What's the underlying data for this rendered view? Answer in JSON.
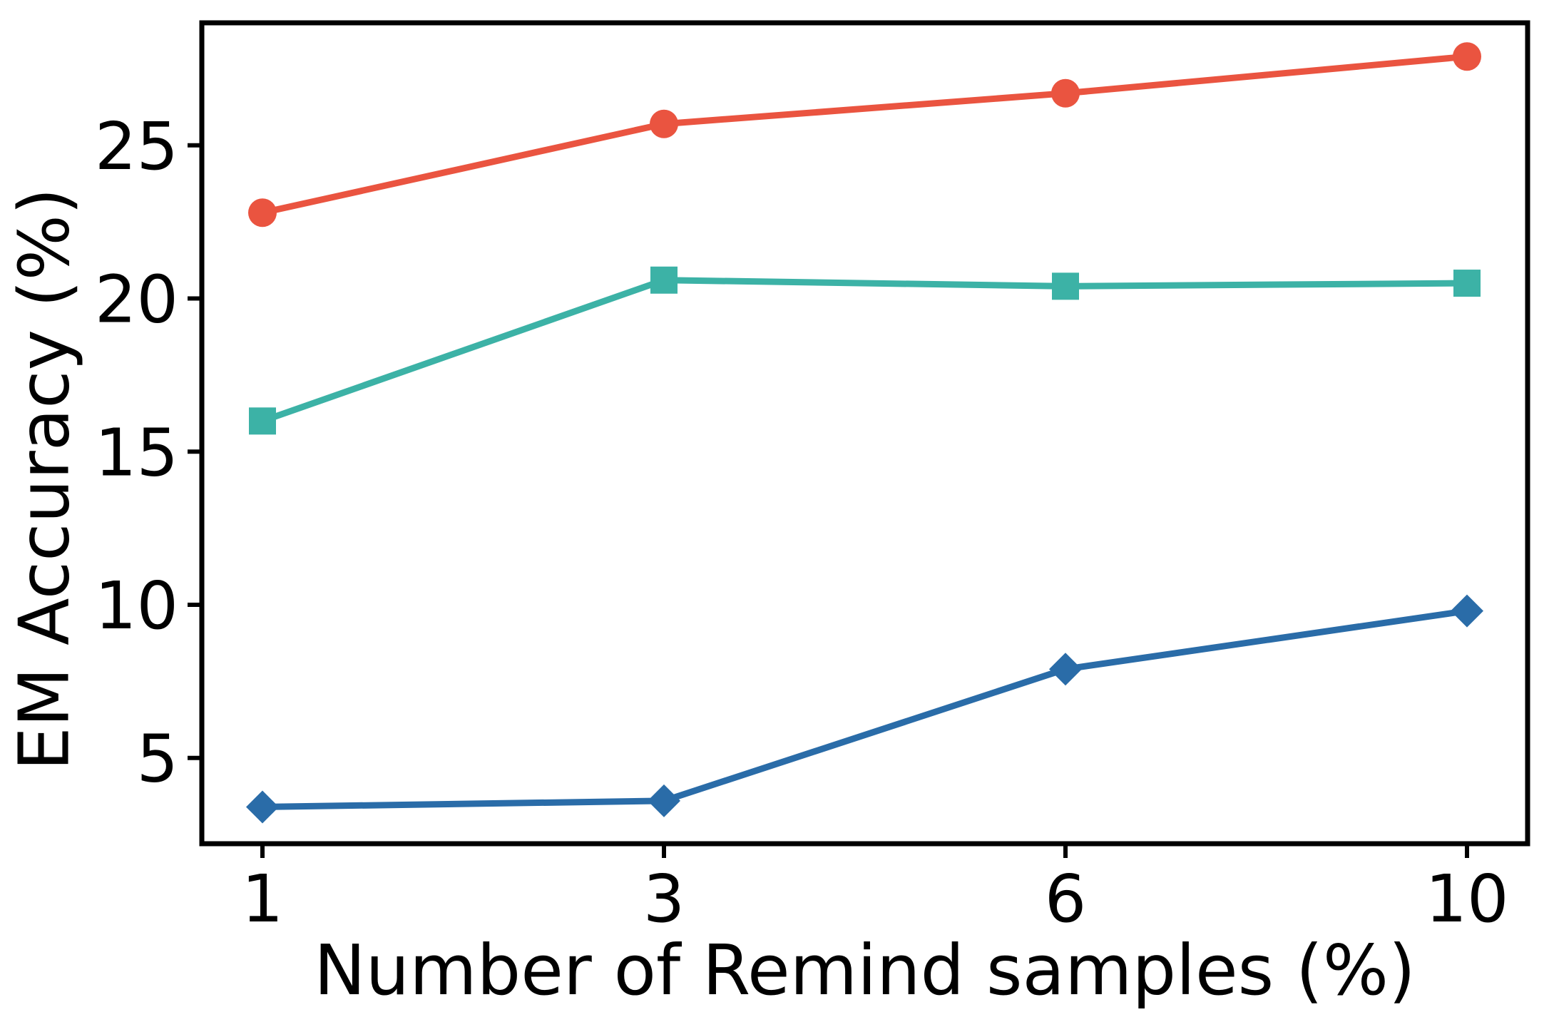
{
  "figure": {
    "background_color": "#ffffff",
    "axis_color": "#000000",
    "text_color": "#000000"
  },
  "chart_data": {
    "type": "line",
    "title": "",
    "xlabel": "Number of Remind samples (%)",
    "ylabel": "EM Accuracy (%)",
    "x_values": [
      1,
      3,
      6,
      10
    ],
    "x_tick_labels": [
      "1",
      "3",
      "6",
      "10"
    ],
    "x_spacing": "equal",
    "y_ticks": [
      5,
      10,
      15,
      20,
      25
    ],
    "y_tick_labels": [
      "5",
      "10",
      "15",
      "20",
      "25"
    ],
    "ylim": [
      2.2,
      29.0
    ],
    "grid": false,
    "legend": "none",
    "series": [
      {
        "id": "red-circle-series",
        "marker": "circle",
        "color": "#EA5440",
        "values": [
          22.8,
          25.7,
          26.7,
          27.9
        ]
      },
      {
        "id": "teal-square-series",
        "marker": "square",
        "color": "#3CB2A6",
        "values": [
          16.0,
          20.6,
          20.4,
          20.5
        ]
      },
      {
        "id": "blue-diamond-series",
        "marker": "diamond",
        "color": "#2A6CA8",
        "values": [
          3.4,
          3.6,
          7.9,
          9.8
        ]
      }
    ]
  }
}
